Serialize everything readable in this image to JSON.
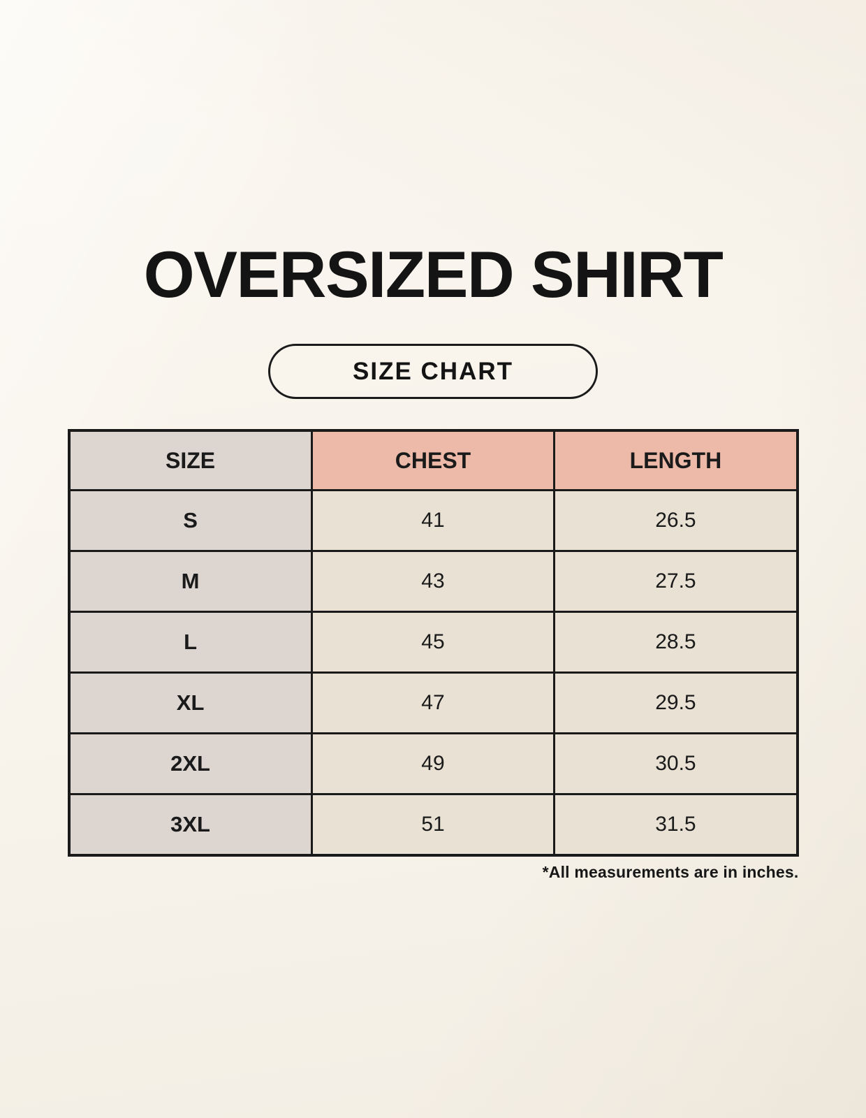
{
  "page": {
    "title": "OVERSIZED SHIRT",
    "badge_label": "SIZE CHART",
    "footnote": "*All measurements are in inches."
  },
  "chart_data": {
    "type": "table",
    "title": "OVERSIZED SHIRT",
    "columns": [
      "SIZE",
      "CHEST",
      "LENGTH"
    ],
    "rows": [
      [
        "S",
        "41",
        "26.5"
      ],
      [
        "M",
        "43",
        "27.5"
      ],
      [
        "L",
        "45",
        "28.5"
      ],
      [
        "XL",
        "47",
        "29.5"
      ],
      [
        "2XL",
        "49",
        "30.5"
      ],
      [
        "3XL",
        "51",
        "31.5"
      ]
    ],
    "units": "inches",
    "note": "*All measurements are in inches."
  },
  "colors": {
    "background": "#f8f4ec",
    "table-border": "#1a1a1a",
    "header-pink": "#edbaa9",
    "size-col-gray": "#dcd5d0",
    "cell-cream": "#e8e1d4",
    "text": "#1a1a1a"
  }
}
